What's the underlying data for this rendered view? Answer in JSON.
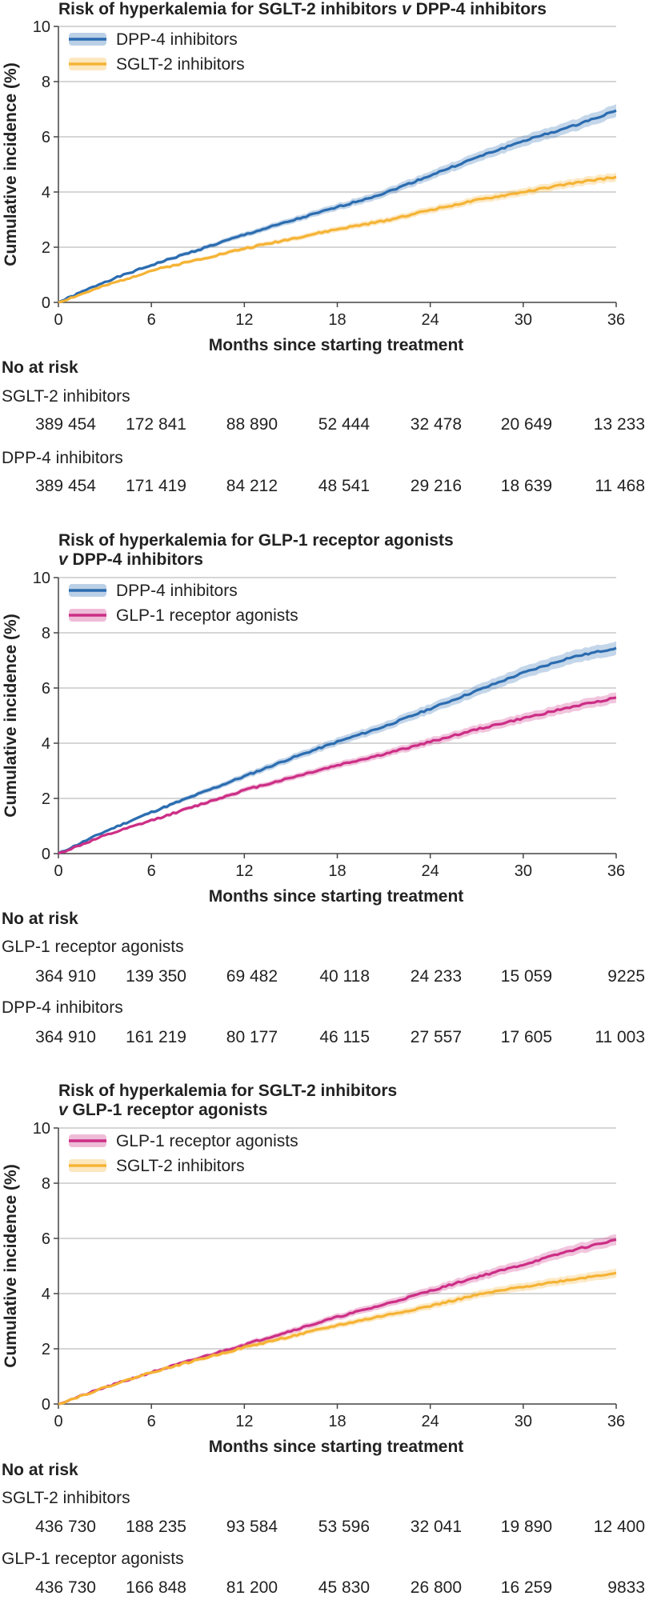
{
  "colors": {
    "dpp4": "#2b6cb0",
    "sglt2": "#f5b335",
    "glp1": "#cc2e86",
    "grid": "#bdbdbd",
    "axis": "#444444"
  },
  "common": {
    "xlabel": "Months since starting treatment",
    "ylabel": "Cumulative incidence (%)",
    "risk_heading": "No at risk"
  },
  "chart_data": [
    {
      "type": "line",
      "title": "Risk of hyperkalemia for SGLT-2 inhibitors v DPP-4 inhibitors",
      "title_lines": [
        "Risk of hyperkalemia for SGLT-2 inhibitors ",
        "v",
        " DPP-4 inhibitors"
      ],
      "xlabel": "Months since starting treatment",
      "ylabel": "Cumulative incidence (%)",
      "xlim": [
        0,
        36
      ],
      "ylim": [
        0,
        10
      ],
      "xticks": [
        0,
        6,
        12,
        18,
        24,
        30,
        36
      ],
      "yticks": [
        0,
        2,
        4,
        6,
        8,
        10
      ],
      "grid": true,
      "legend_position": "top-left",
      "series": [
        {
          "name": "DPP-4 inhibitors",
          "color": "#2b6cb0",
          "x": [
            0,
            3,
            6,
            9,
            12,
            15,
            18,
            21,
            24,
            27,
            30,
            33,
            36
          ],
          "y": [
            0,
            0.75,
            1.35,
            1.9,
            2.45,
            2.95,
            3.45,
            3.95,
            4.6,
            5.25,
            5.85,
            6.35,
            6.95
          ]
        },
        {
          "name": "SGLT-2 inhibitors",
          "color": "#f5b335",
          "x": [
            0,
            3,
            6,
            9,
            12,
            15,
            18,
            21,
            24,
            27,
            30,
            33,
            36
          ],
          "y": [
            0,
            0.6,
            1.15,
            1.55,
            1.95,
            2.3,
            2.65,
            2.95,
            3.35,
            3.7,
            4.0,
            4.3,
            4.55
          ]
        }
      ],
      "at_risk": [
        {
          "group": "SGLT-2 inhibitors",
          "counts": [
            "389 454",
            "172 841",
            "88 890",
            "52 444",
            "32 478",
            "20 649",
            "13 233"
          ]
        },
        {
          "group": "DPP-4 inhibitors",
          "counts": [
            "389 454",
            "171 419",
            "84 212",
            "48 541",
            "29 216",
            "18 639",
            "11 468"
          ]
        }
      ]
    },
    {
      "type": "line",
      "title": "Risk of hyperkalemia for GLP-1 receptor agonists v DPP-4 inhibitors",
      "title_lines": [
        "Risk of hyperkalemia for GLP-1 receptor agonists",
        "v",
        " DPP-4 inhibitors"
      ],
      "xlabel": "Months since starting treatment",
      "ylabel": "Cumulative incidence (%)",
      "xlim": [
        0,
        36
      ],
      "ylim": [
        0,
        10
      ],
      "xticks": [
        0,
        6,
        12,
        18,
        24,
        30,
        36
      ],
      "yticks": [
        0,
        2,
        4,
        6,
        8,
        10
      ],
      "grid": true,
      "legend_position": "top-left",
      "series": [
        {
          "name": "DPP-4 inhibitors",
          "color": "#2b6cb0",
          "x": [
            0,
            3,
            6,
            9,
            12,
            15,
            18,
            21,
            24,
            27,
            30,
            33,
            36
          ],
          "y": [
            0,
            0.8,
            1.5,
            2.15,
            2.8,
            3.45,
            4.05,
            4.6,
            5.25,
            5.9,
            6.55,
            7.1,
            7.45
          ]
        },
        {
          "name": "GLP-1 receptor agonists",
          "color": "#cc2e86",
          "x": [
            0,
            3,
            6,
            9,
            12,
            15,
            18,
            21,
            24,
            27,
            30,
            33,
            36
          ],
          "y": [
            0,
            0.65,
            1.2,
            1.75,
            2.3,
            2.75,
            3.2,
            3.6,
            4.05,
            4.5,
            4.9,
            5.3,
            5.65
          ]
        }
      ],
      "at_risk": [
        {
          "group": "GLP-1 receptor agonists",
          "counts": [
            "364 910",
            "139 350",
            "69 482",
            "40 118",
            "24 233",
            "15 059",
            "9225"
          ]
        },
        {
          "group": "DPP-4 inhibitors",
          "counts": [
            "364 910",
            "161 219",
            "80 177",
            "46 115",
            "27 557",
            "17 605",
            "11 003"
          ]
        }
      ]
    },
    {
      "type": "line",
      "title": "Risk of hyperkalemia for SGLT-2 inhibitors v GLP-1 receptor agonists",
      "title_lines": [
        "Risk of hyperkalemia for SGLT-2 inhibitors",
        "v",
        " GLP-1 receptor agonists"
      ],
      "xlabel": "Months since starting treatment",
      "ylabel": "Cumulative incidence (%)",
      "xlim": [
        0,
        36
      ],
      "ylim": [
        0,
        10
      ],
      "xticks": [
        0,
        6,
        12,
        18,
        24,
        30,
        36
      ],
      "yticks": [
        0,
        2,
        4,
        6,
        8,
        10
      ],
      "grid": true,
      "legend_position": "top-left",
      "series": [
        {
          "name": "GLP-1 receptor agonists",
          "color": "#cc2e86",
          "x": [
            0,
            3,
            6,
            9,
            12,
            15,
            18,
            21,
            24,
            27,
            30,
            33,
            36
          ],
          "y": [
            0,
            0.6,
            1.15,
            1.65,
            2.15,
            2.65,
            3.15,
            3.6,
            4.1,
            4.6,
            5.05,
            5.55,
            5.95
          ]
        },
        {
          "name": "SGLT-2 inhibitors",
          "color": "#f5b335",
          "x": [
            0,
            3,
            6,
            9,
            12,
            15,
            18,
            21,
            24,
            27,
            30,
            33,
            36
          ],
          "y": [
            0,
            0.6,
            1.15,
            1.6,
            2.05,
            2.45,
            2.85,
            3.2,
            3.55,
            3.95,
            4.25,
            4.5,
            4.75
          ]
        }
      ],
      "at_risk": [
        {
          "group": "SGLT-2 inhibitors",
          "counts": [
            "436 730",
            "188 235",
            "93 584",
            "53 596",
            "32 041",
            "19 890",
            "12 400"
          ]
        },
        {
          "group": "GLP-1 receptor agonists",
          "counts": [
            "436 730",
            "166 848",
            "81 200",
            "45 830",
            "26 800",
            "16 259",
            "9833"
          ]
        }
      ]
    }
  ]
}
